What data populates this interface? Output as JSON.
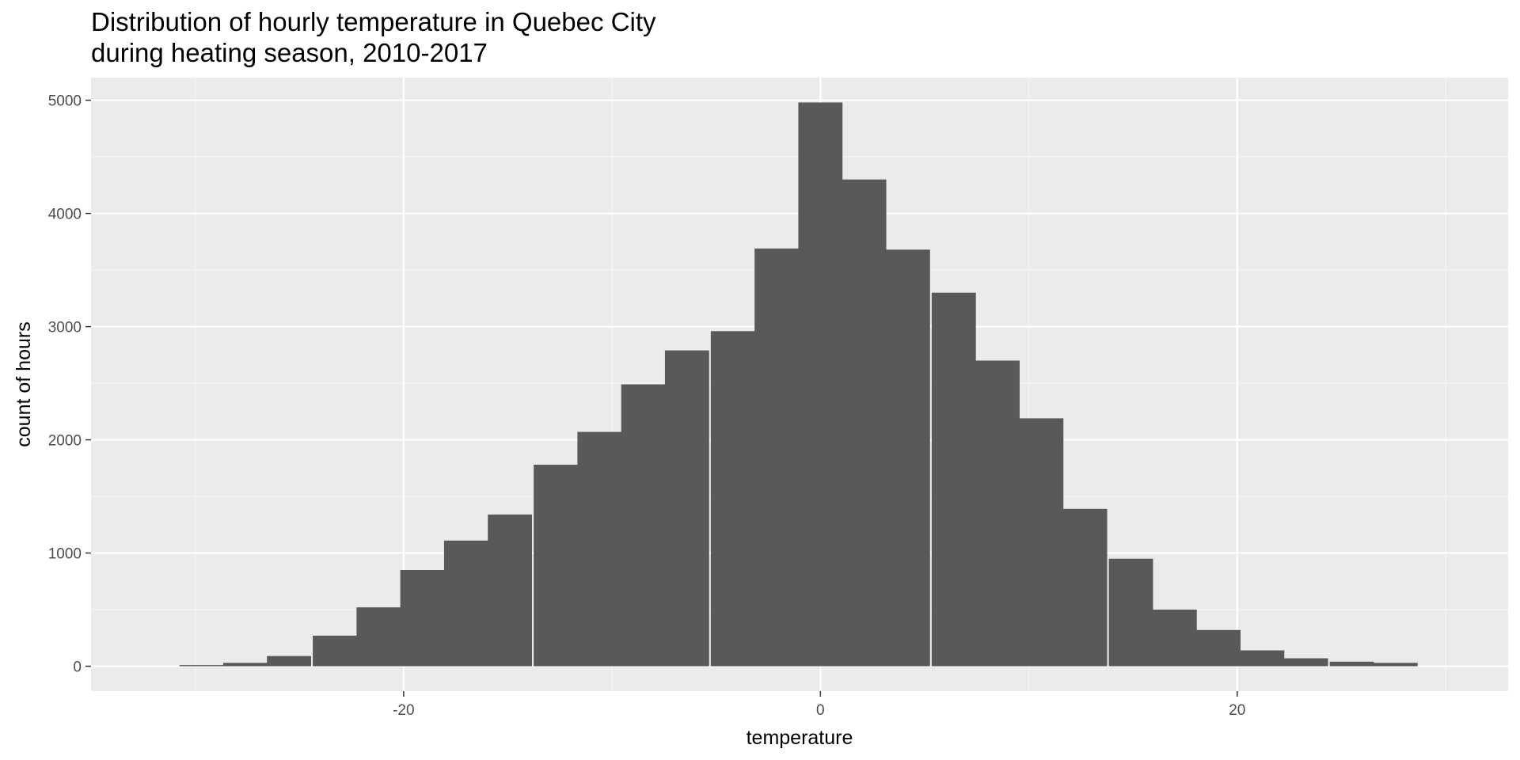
{
  "chart_data": {
    "type": "bar",
    "title_lines": [
      "Distribution of hourly temperature in Quebec City",
      "during heating season, 2010-2017"
    ],
    "xlabel": "temperature",
    "ylabel": "count of hours",
    "xlim": [
      -35,
      33
    ],
    "ylim": [
      -220,
      5200
    ],
    "x_ticks": [
      -20,
      0,
      20
    ],
    "x_tick_labels": [
      "-20",
      "0",
      "20"
    ],
    "x_minor_ticks": [
      -30,
      -10,
      10,
      30
    ],
    "y_ticks": [
      0,
      1000,
      2000,
      3000,
      4000,
      5000
    ],
    "y_tick_labels": [
      "0",
      "1000",
      "2000",
      "3000",
      "4000",
      "5000"
    ],
    "y_minor_ticks": [
      500,
      1500,
      2500,
      3500,
      4500
    ],
    "bin_width": 2.12,
    "bin_centers": [
      -29.7,
      -27.6,
      -25.5,
      -23.3,
      -21.2,
      -19.1,
      -17.0,
      -14.9,
      -12.7,
      -10.6,
      -8.5,
      -6.4,
      -4.2,
      -2.1,
      0.0,
      2.1,
      4.2,
      6.4,
      8.5,
      10.6,
      12.7,
      14.9,
      17.0,
      19.1,
      21.2,
      23.3,
      25.5,
      27.6
    ],
    "values": [
      10,
      30,
      90,
      270,
      520,
      850,
      1110,
      1340,
      1780,
      2070,
      2490,
      2790,
      2960,
      3690,
      4980,
      4300,
      3680,
      3300,
      2700,
      2190,
      1390,
      950,
      500,
      320,
      140,
      70,
      40,
      30
    ],
    "grid": true,
    "colors": {
      "panel_background": "#ebebeb",
      "grid_major": "#ffffff",
      "grid_minor": "#f5f5f5",
      "bar_fill": "#595959",
      "tick_mark": "#333333"
    }
  }
}
